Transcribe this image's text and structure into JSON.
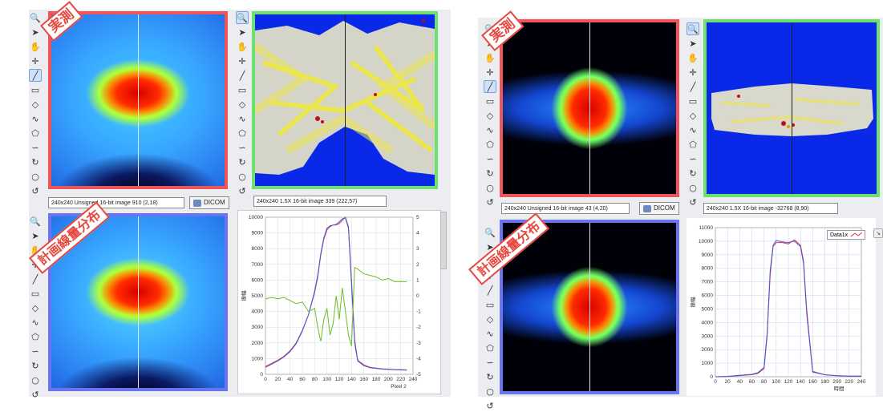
{
  "left": {
    "stamp_measured": "実測",
    "stamp_plan": "計画線量分布",
    "status_measured": "240x240 Unsigned 16-bit image 910   (2,18)",
    "status_gafchromic": "240x240 1.5X 16-bit image 339   (222,57)",
    "dicom_label": "DICOM",
    "chart_data": {
      "type": "line",
      "x": [
        0,
        10,
        20,
        30,
        40,
        50,
        60,
        70,
        80,
        85,
        90,
        95,
        100,
        105,
        110,
        115,
        120,
        125,
        130,
        135,
        140,
        145,
        150,
        160,
        170,
        180,
        190,
        200,
        210,
        220,
        230
      ],
      "series": [
        {
          "values": [
            500,
            700,
            900,
            1150,
            1500,
            2000,
            2800,
            3800,
            5200,
            6200,
            7600,
            8600,
            9200,
            9400,
            9500,
            9500,
            9600,
            9800,
            10000,
            9400,
            6000,
            2200,
            900,
            600,
            450,
            400,
            350,
            330,
            300,
            300,
            280
          ]
        },
        {
          "values": [
            450,
            650,
            850,
            1100,
            1450,
            1950,
            2750,
            3800,
            5300,
            6300,
            7700,
            8700,
            9300,
            9450,
            9500,
            9550,
            9700,
            9900,
            9950,
            9300,
            5700,
            2000,
            850,
            550,
            420,
            380,
            330,
            310,
            290,
            280,
            260
          ]
        },
        {
          "values": [
            -0.2,
            -0.1,
            -0.2,
            -0.1,
            -0.3,
            -0.5,
            -0.4,
            -1.0,
            -0.8,
            -2.0,
            -2.9,
            -1.5,
            -0.8,
            -2.5,
            -1.8,
            0.0,
            -1.5,
            0.5,
            -1.0,
            -2.5,
            -3.2,
            1.8,
            1.7,
            1.4,
            1.3,
            1.2,
            1.0,
            1.1,
            0.9,
            0.9,
            0.9
          ]
        }
      ],
      "ylim": [
        0,
        10000
      ],
      "y2lim": [
        -5,
        5
      ],
      "xlim": [
        0,
        240
      ],
      "xticks": [
        "0",
        "20",
        "40",
        "60",
        "80",
        "100",
        "120",
        "140",
        "160",
        "180",
        "200",
        "220",
        "240"
      ],
      "yticks": [
        "0",
        "1000",
        "2000",
        "3000",
        "4000",
        "5000",
        "6000",
        "7000",
        "8000",
        "9000",
        "10000"
      ],
      "y2ticks": [
        "-5",
        "-4",
        "-3",
        "-2",
        "-1",
        "0",
        "1",
        "2",
        "3",
        "4",
        "5"
      ],
      "xlabel": "Pixel 2",
      "ylabel": "振幅"
    }
  },
  "right": {
    "stamp_measured": "実測",
    "stamp_plan": "計画線量分布",
    "status_measured": "240x240 Unsigned 16-bit image 43   (4,20)",
    "status_gafchromic": "240x240 1.5X 16-bit image -32768   (8,90)",
    "dicom_label": "DICOM",
    "chart_data": {
      "type": "line",
      "x": [
        0,
        20,
        40,
        60,
        70,
        80,
        85,
        90,
        95,
        100,
        110,
        120,
        130,
        140,
        145,
        150,
        160,
        180,
        200,
        220,
        240
      ],
      "series": [
        {
          "name": "Data1x",
          "values": [
            0,
            20,
            80,
            150,
            250,
            600,
            3000,
            7500,
            9600,
            9900,
            9900,
            9800,
            10100,
            9700,
            8500,
            5000,
            400,
            150,
            80,
            50,
            50
          ]
        },
        {
          "values": [
            0,
            30,
            100,
            180,
            300,
            700,
            3200,
            7800,
            9700,
            10050,
            9950,
            9900,
            10000,
            9600,
            8300,
            4700,
            350,
            140,
            70,
            40,
            40
          ]
        }
      ],
      "ylim": [
        0,
        11000
      ],
      "xlim": [
        0,
        240
      ],
      "xticks": [
        "0",
        "20",
        "40",
        "60",
        "80",
        "100",
        "120",
        "140",
        "160",
        "180",
        "200",
        "220",
        "240"
      ],
      "yticks": [
        "0",
        "1000",
        "2000",
        "3000",
        "4000",
        "5000",
        "6000",
        "7000",
        "8000",
        "9000",
        "10000",
        "11000"
      ],
      "xlabel": "時間",
      "ylabel": "振幅"
    }
  },
  "toolbar": {
    "icons": [
      "zoom-icon",
      "pointer-icon",
      "pan-icon",
      "crosshair-icon",
      "line-tool-icon",
      "rectangle-tool-icon",
      "diamond-tool-icon",
      "freehand-tool-icon",
      "polygon-tool-icon",
      "curve-tool-icon",
      "lasso-tool-icon",
      "oval-tool-icon",
      "rotate-tool-icon"
    ],
    "glyphs": [
      "🔍",
      "➤",
      "✋",
      "✛",
      "╱",
      "▭",
      "◇",
      "∿",
      "⬠",
      "∽",
      "↻",
      "○",
      "↺"
    ]
  },
  "colors": {
    "measured_border": "#f0555a",
    "gafchromic_border": "#6ee06e",
    "plan_border": "#6a74f0",
    "stamp": "#e5483e",
    "series_red": "#e8323a",
    "series_blue": "#3a5ae0",
    "series_green": "#6abd2a"
  }
}
